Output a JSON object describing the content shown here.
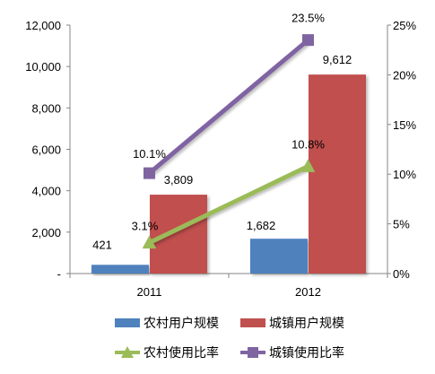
{
  "chart_data": {
    "type": "bar+line",
    "title": "",
    "categories": [
      "2011",
      "2012"
    ],
    "bar_series": [
      {
        "name": "农村用户规模",
        "values": [
          421,
          1682
        ],
        "labels": [
          "421",
          "1,682"
        ],
        "color": "#4f81bd"
      },
      {
        "name": "城镇用户规模",
        "values": [
          3809,
          9612
        ],
        "labels": [
          "3,809",
          "9,612"
        ],
        "color": "#c0504d"
      }
    ],
    "line_series": [
      {
        "name": "农村使用比率",
        "values": [
          3.1,
          10.8
        ],
        "labels": [
          "3.1%",
          "10.8%"
        ],
        "color": "#9bbb59",
        "marker": "triangle"
      },
      {
        "name": "城镇使用比率",
        "values": [
          10.1,
          23.5
        ],
        "labels": [
          "10.1%",
          "23.5%"
        ],
        "color": "#8064a2",
        "marker": "square"
      }
    ],
    "y_left": {
      "min": 0,
      "max": 12000,
      "ticks": [
        "-",
        "2,000",
        "4,000",
        "6,000",
        "8,000",
        "10,000",
        "12,000"
      ],
      "tick_values": [
        0,
        2000,
        4000,
        6000,
        8000,
        10000,
        12000
      ]
    },
    "y_right": {
      "min": 0,
      "max": 25,
      "ticks": [
        "0%",
        "5%",
        "10%",
        "15%",
        "20%",
        "25%"
      ],
      "tick_values": [
        0,
        5,
        10,
        15,
        20,
        25
      ]
    },
    "grid": false,
    "legend": {
      "position": "bottom",
      "rows": [
        [
          "农村用户规模",
          "城镇用户规模"
        ],
        [
          "农村使用比率",
          "城镇使用比率"
        ]
      ]
    }
  }
}
